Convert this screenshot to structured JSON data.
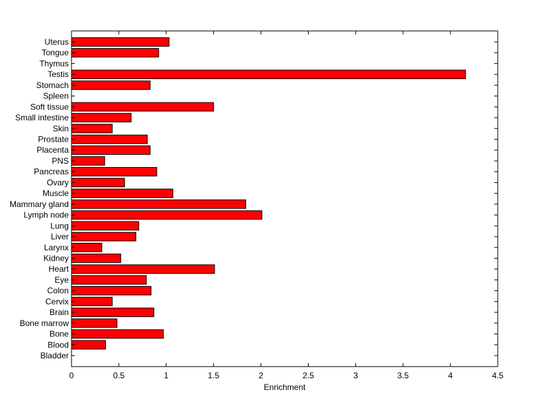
{
  "chart_data": {
    "type": "bar",
    "orientation": "horizontal",
    "title": "",
    "xlabel": "Enrichment",
    "ylabel": "",
    "xlim": [
      0,
      4.5
    ],
    "x_ticks": [
      0,
      0.5,
      1,
      1.5,
      2,
      2.5,
      3,
      3.5,
      4,
      4.5
    ],
    "x_tick_labels": [
      "0",
      "0.5",
      "1",
      "1.5",
      "2",
      "2.5",
      "3",
      "3.5",
      "4",
      "4.5"
    ],
    "grid": false,
    "legend": "none",
    "bar_color": "#ff0000",
    "categories": [
      "Uterus",
      "Tongue",
      "Thymus",
      "Testis",
      "Stomach",
      "Spleen",
      "Soft tissue",
      "Small intestine",
      "Skin",
      "Prostate",
      "Placenta",
      "PNS",
      "Pancreas",
      "Ovary",
      "Muscle",
      "Mammary gland",
      "Lymph node",
      "Lung",
      "Liver",
      "Larynx",
      "Kidney",
      "Heart",
      "Eye",
      "Colon",
      "Cervix",
      "Brain",
      "Bone marrow",
      "Bone",
      "Blood",
      "Bladder"
    ],
    "values": [
      1.03,
      0.92,
      0,
      4.16,
      0.83,
      0,
      1.5,
      0.63,
      0.43,
      0.8,
      0.83,
      0.35,
      0.9,
      0.56,
      1.07,
      1.84,
      2.01,
      0.71,
      0.68,
      0.32,
      0.52,
      1.51,
      0.79,
      0.84,
      0.43,
      0.87,
      0.48,
      0.97,
      0.36,
      0
    ]
  }
}
